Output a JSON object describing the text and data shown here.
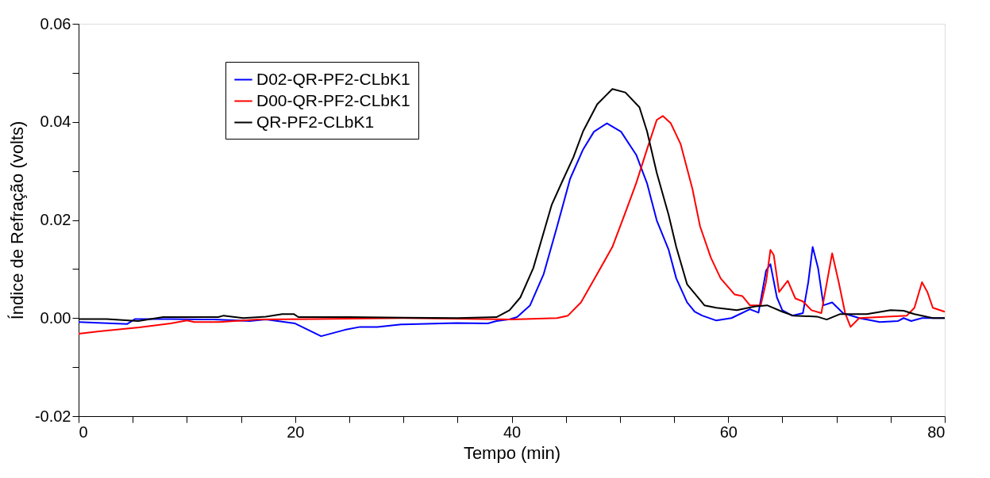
{
  "chart_data": {
    "type": "line",
    "xlabel": "Tempo (min)",
    "ylabel": "Índice de Refração (volts)",
    "xlim": [
      0,
      80
    ],
    "ylim": [
      -0.02,
      0.06
    ],
    "xticks": [
      0,
      {
        "value": 5,
        "label": null
      },
      {
        "value": 10,
        "label": null
      },
      {
        "value": 15,
        "label": null
      },
      20,
      {
        "value": 25,
        "label": null
      },
      {
        "value": 30,
        "label": null
      },
      {
        "value": 35,
        "label": null
      },
      40,
      {
        "value": 45,
        "label": null
      },
      {
        "value": 50,
        "label": null
      },
      {
        "value": 55,
        "label": null
      },
      60,
      {
        "value": 65,
        "label": null
      },
      {
        "value": 70,
        "label": null
      },
      {
        "value": 75,
        "label": null
      },
      80
    ],
    "yticks": [
      {
        "value": -0.02,
        "label": "-0.02"
      },
      {
        "value": -0.01,
        "label": null
      },
      {
        "value": 0,
        "label": "0.00"
      },
      {
        "value": 0.01,
        "label": null
      },
      {
        "value": 0.02,
        "label": "0.02"
      },
      {
        "value": 0.03,
        "label": null
      },
      {
        "value": 0.04,
        "label": "0.04"
      },
      {
        "value": 0.05,
        "label": null
      },
      {
        "value": 0.06,
        "label": "0.06"
      }
    ],
    "grid": false,
    "legend": "top left",
    "marker": "none",
    "line_style": "solid",
    "series": [
      {
        "name": "D02-QR-PF2-CLbK1",
        "color": "#0000ff",
        "x": [
          0,
          4.5,
          5.2,
          8.5,
          12.5,
          15.8,
          17.3,
          20,
          22.4,
          24.6,
          26,
          27.6,
          29.8,
          34.9,
          37.8,
          38.6,
          39.7,
          40.5,
          41.7,
          42.96,
          44.2,
          45.4,
          46.6,
          47.6,
          48.8,
          50.1,
          51.5,
          52.5,
          53.4,
          54.5,
          55.2,
          56.2,
          56.9,
          57.6,
          58.9,
          60.3,
          62,
          62.8,
          63.5,
          63.9,
          64.5,
          65,
          65.9,
          66.9,
          67.4,
          67.8,
          68.3,
          68.8,
          69.6,
          70.6,
          72.1,
          74,
          75.7,
          76.2,
          76.9,
          77.9,
          78.9,
          80
        ],
        "values": [
          -0.0008,
          -0.0012,
          -0.0002,
          -0.0002,
          -0.0003,
          -0.0006,
          -0.0003,
          -0.0011,
          -0.0037,
          -0.0024,
          -0.0018,
          -0.0018,
          -0.0013,
          -0.001,
          -0.0011,
          -0.0006,
          -0.0003,
          0.0002,
          0.0026,
          0.009,
          0.0187,
          0.0284,
          0.0344,
          0.038,
          0.0397,
          0.038,
          0.0333,
          0.0275,
          0.0199,
          0.0139,
          0.0081,
          0.0032,
          0.0013,
          0.0005,
          -0.0005,
          0,
          0.0018,
          0.0011,
          0.0097,
          0.011,
          0.0042,
          0.0016,
          0.0005,
          0.001,
          0.0074,
          0.0145,
          0.0102,
          0.0026,
          0.0032,
          0.001,
          0,
          -0.0008,
          -0.0006,
          0,
          -0.0006,
          0,
          0,
          0
        ]
      },
      {
        "name": "D00-QR-PF2-CLbK1",
        "color": "#ff0000",
        "x": [
          0,
          1.9,
          5.6,
          8.5,
          10,
          10.7,
          13,
          16.6,
          21.7,
          30,
          40,
          44.2,
          45.2,
          46.4,
          47.9,
          49.3,
          50.5,
          51.5,
          52.5,
          53.4,
          53.96,
          54.7,
          55.6,
          56.7,
          57.4,
          58.4,
          59.3,
          60.6,
          61.3,
          62,
          63,
          63.5,
          63.9,
          64.2,
          64.7,
          65.5,
          66.2,
          66.9,
          67.7,
          68.6,
          69.6,
          70.2,
          70.8,
          71.3,
          72.1,
          76.5,
          77.2,
          77.9,
          78.4,
          78.9,
          80
        ],
        "values": [
          -0.0032,
          -0.0027,
          -0.0019,
          -0.0011,
          -0.0005,
          -0.0008,
          -0.0008,
          -0.0003,
          -0.0002,
          0,
          -0.0003,
          0,
          0.0005,
          0.0032,
          0.009,
          0.0145,
          0.0215,
          0.0275,
          0.0344,
          0.0404,
          0.0412,
          0.0397,
          0.0355,
          0.0263,
          0.0187,
          0.0123,
          0.0081,
          0.0048,
          0.0045,
          0.0026,
          0.0026,
          0.0074,
          0.0139,
          0.0129,
          0.0053,
          0.0076,
          0.004,
          0.0034,
          0.0016,
          0.001,
          0.0132,
          0.0074,
          0.001,
          -0.0018,
          0,
          0.0005,
          0.0021,
          0.0073,
          0.0053,
          0.0021,
          0.0013
        ]
      },
      {
        "name": "QR-PF2-CLbK1",
        "color": "#000000",
        "x": [
          0,
          2.6,
          5.5,
          7.8,
          12.9,
          13.4,
          15.2,
          17.3,
          18.8,
          19.9,
          20.3,
          25,
          35,
          38.6,
          39.8,
          40.8,
          42,
          42.7,
          43.7,
          44.7,
          45.7,
          46.6,
          47.9,
          49.3,
          50.5,
          51.8,
          52.5,
          53.4,
          54.5,
          55.2,
          56.2,
          57.4,
          57.8,
          58.9,
          60.8,
          62.5,
          63.6,
          65,
          66,
          68.2,
          69.1,
          70.3,
          72.8,
          75,
          76.2,
          77.2,
          78.9,
          80
        ],
        "values": [
          -0.0002,
          -0.0002,
          -0.0006,
          0.0002,
          0.0002,
          0.0005,
          0,
          0.0003,
          0.0008,
          0.0008,
          0.0002,
          0.0002,
          0,
          0.0002,
          0.0016,
          0.0042,
          0.0102,
          0.0155,
          0.0231,
          0.028,
          0.0328,
          0.0381,
          0.0436,
          0.0467,
          0.046,
          0.043,
          0.0381,
          0.0296,
          0.021,
          0.0145,
          0.0069,
          0.0037,
          0.0026,
          0.0021,
          0.0016,
          0.0024,
          0.0026,
          0.0013,
          0.0005,
          0.0003,
          -0.0003,
          0.0008,
          0.0008,
          0.0016,
          0.0015,
          0.0008,
          0,
          0
        ]
      }
    ]
  }
}
